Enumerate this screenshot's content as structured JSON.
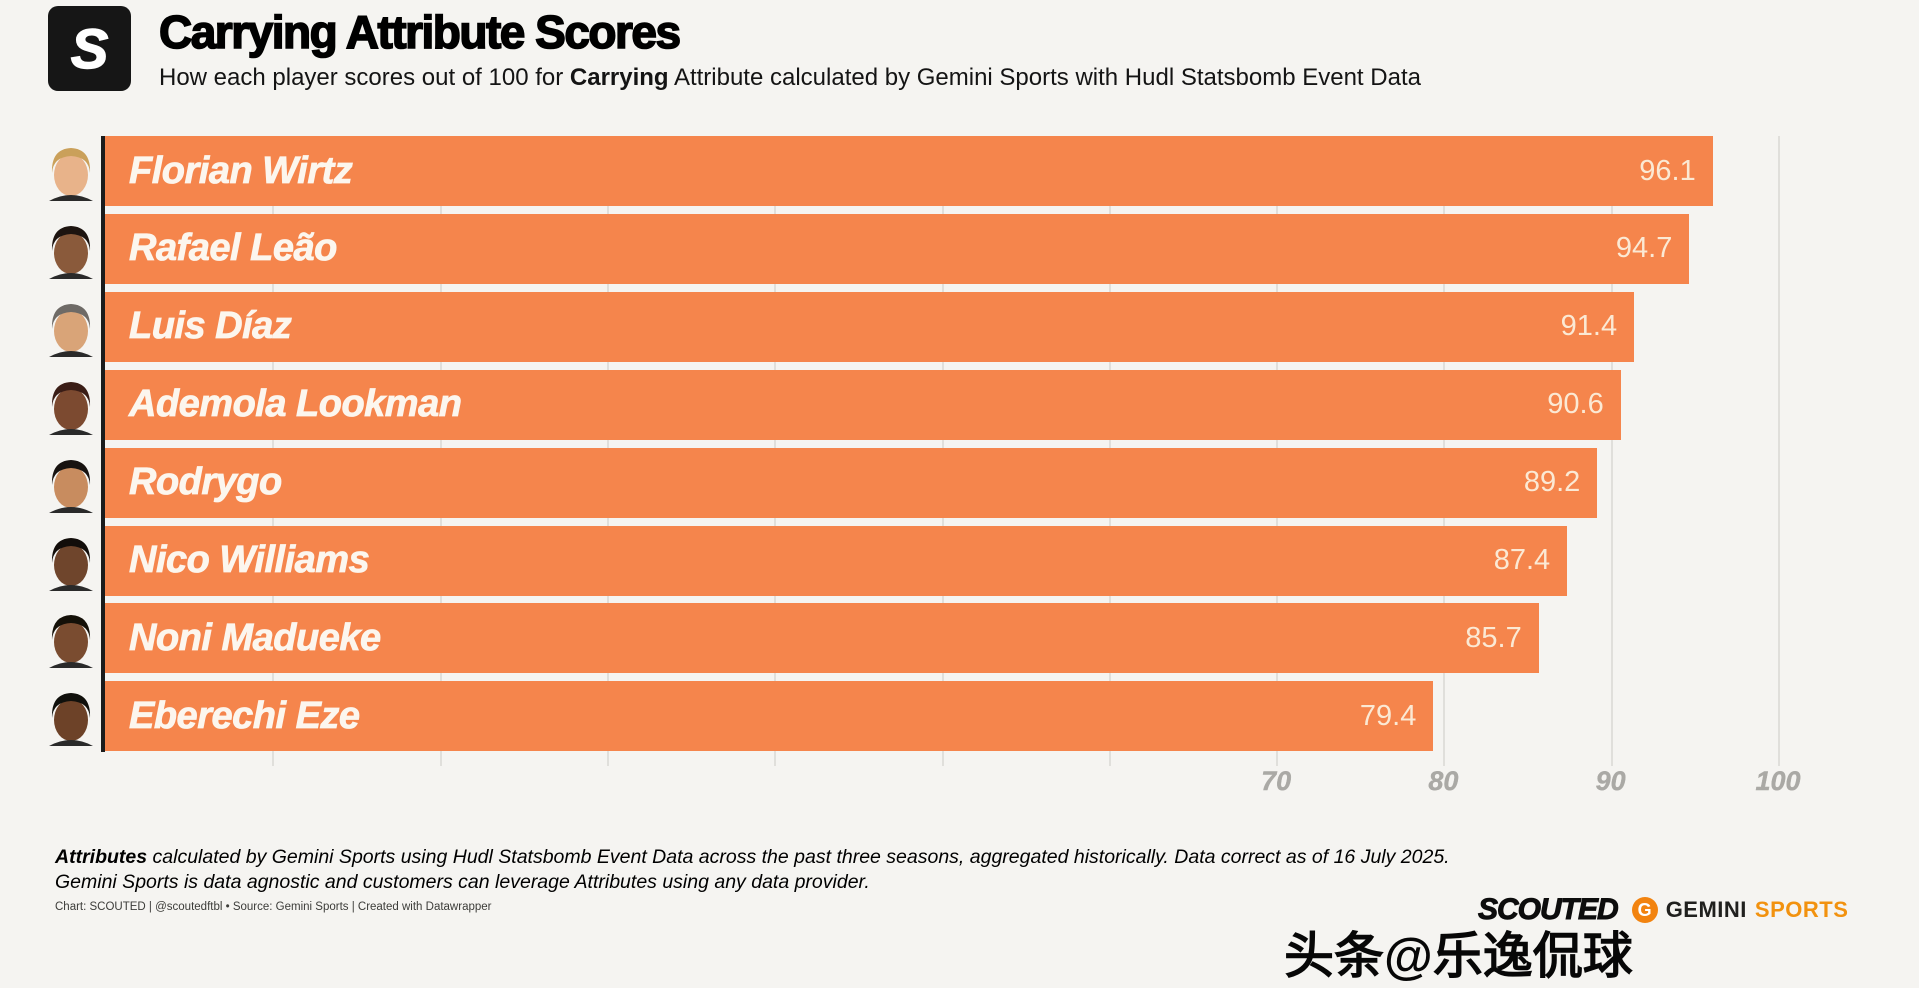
{
  "header": {
    "logo_letter": "S",
    "title": "Carrying Attribute Scores",
    "subtitle_prefix": "How each player scores out of 100 for ",
    "subtitle_bold": "Carrying",
    "subtitle_suffix": " Attribute calculated by Gemini Sports with Hudl Statsbomb Event Data"
  },
  "chart_data": {
    "type": "bar",
    "orientation": "horizontal",
    "title": "Carrying Attribute Scores",
    "categories": [
      "Florian Wirtz",
      "Rafael Leão",
      "Luis Díaz",
      "Ademola Lookman",
      "Rodrygo",
      "Nico Williams",
      "Noni Madueke",
      "Eberechi Eze"
    ],
    "values": [
      96.1,
      94.7,
      91.4,
      90.6,
      89.2,
      87.4,
      85.7,
      79.4
    ],
    "xlabel": "",
    "ylabel": "",
    "xlim": [
      0,
      108
    ],
    "axis_ticks": [
      70,
      80,
      90,
      100
    ],
    "gridline_interval": 10,
    "grid": true,
    "legend": false,
    "bar_color": "#f5854c",
    "value_label_color": "#fbe9d4",
    "name_label_color": "#fcf6ee",
    "axis_line_color": "#1c1c1c",
    "gridline_color": "#e0dfdb",
    "tick_label_color": "#aaa9a5"
  },
  "players": [
    {
      "name": "Florian Wirtz",
      "score": "96.1",
      "avatar": {
        "skin": "#e8b38a",
        "hair": "#caa05a"
      }
    },
    {
      "name": "Rafael Leão",
      "score": "94.7",
      "avatar": {
        "skin": "#8a5a3b",
        "hair": "#1d1410"
      }
    },
    {
      "name": "Luis Díaz",
      "score": "91.4",
      "avatar": {
        "skin": "#d9a478",
        "hair": "#6e6a66"
      }
    },
    {
      "name": "Ademola Lookman",
      "score": "90.6",
      "avatar": {
        "skin": "#7c4a30",
        "hair": "#3a1d16"
      }
    },
    {
      "name": "Rodrygo",
      "score": "89.2",
      "avatar": {
        "skin": "#c88c5f",
        "hair": "#171210"
      }
    },
    {
      "name": "Nico Williams",
      "score": "87.4",
      "avatar": {
        "skin": "#6f452c",
        "hair": "#120d0a"
      }
    },
    {
      "name": "Noni Madueke",
      "score": "85.7",
      "avatar": {
        "skin": "#7a4c30",
        "hair": "#141008"
      }
    },
    {
      "name": "Eberechi Eze",
      "score": "79.4",
      "avatar": {
        "skin": "#6d4228",
        "hair": "#10100c"
      }
    }
  ],
  "footer": {
    "note_bold": "Attributes",
    "note_rest1": " calculated by Gemini Sports using Hudl Statsbomb Event Data across the past three seasons, aggregated historically. Data correct as of 16 July 2025.",
    "note_line2": "Gemini Sports is data agnostic and customers can leverage Attributes using any data provider.",
    "credit": "Chart: SCOUTED | @scoutedftbl • Source: Gemini Sports | Created with Datawrapper"
  },
  "branding": {
    "scouted": "SCOUTED",
    "gemini_icon_letter": "G",
    "gemini_word": "GEMINI",
    "sports_word": "SPORTS",
    "watermark": "头条@乐逸侃球"
  }
}
